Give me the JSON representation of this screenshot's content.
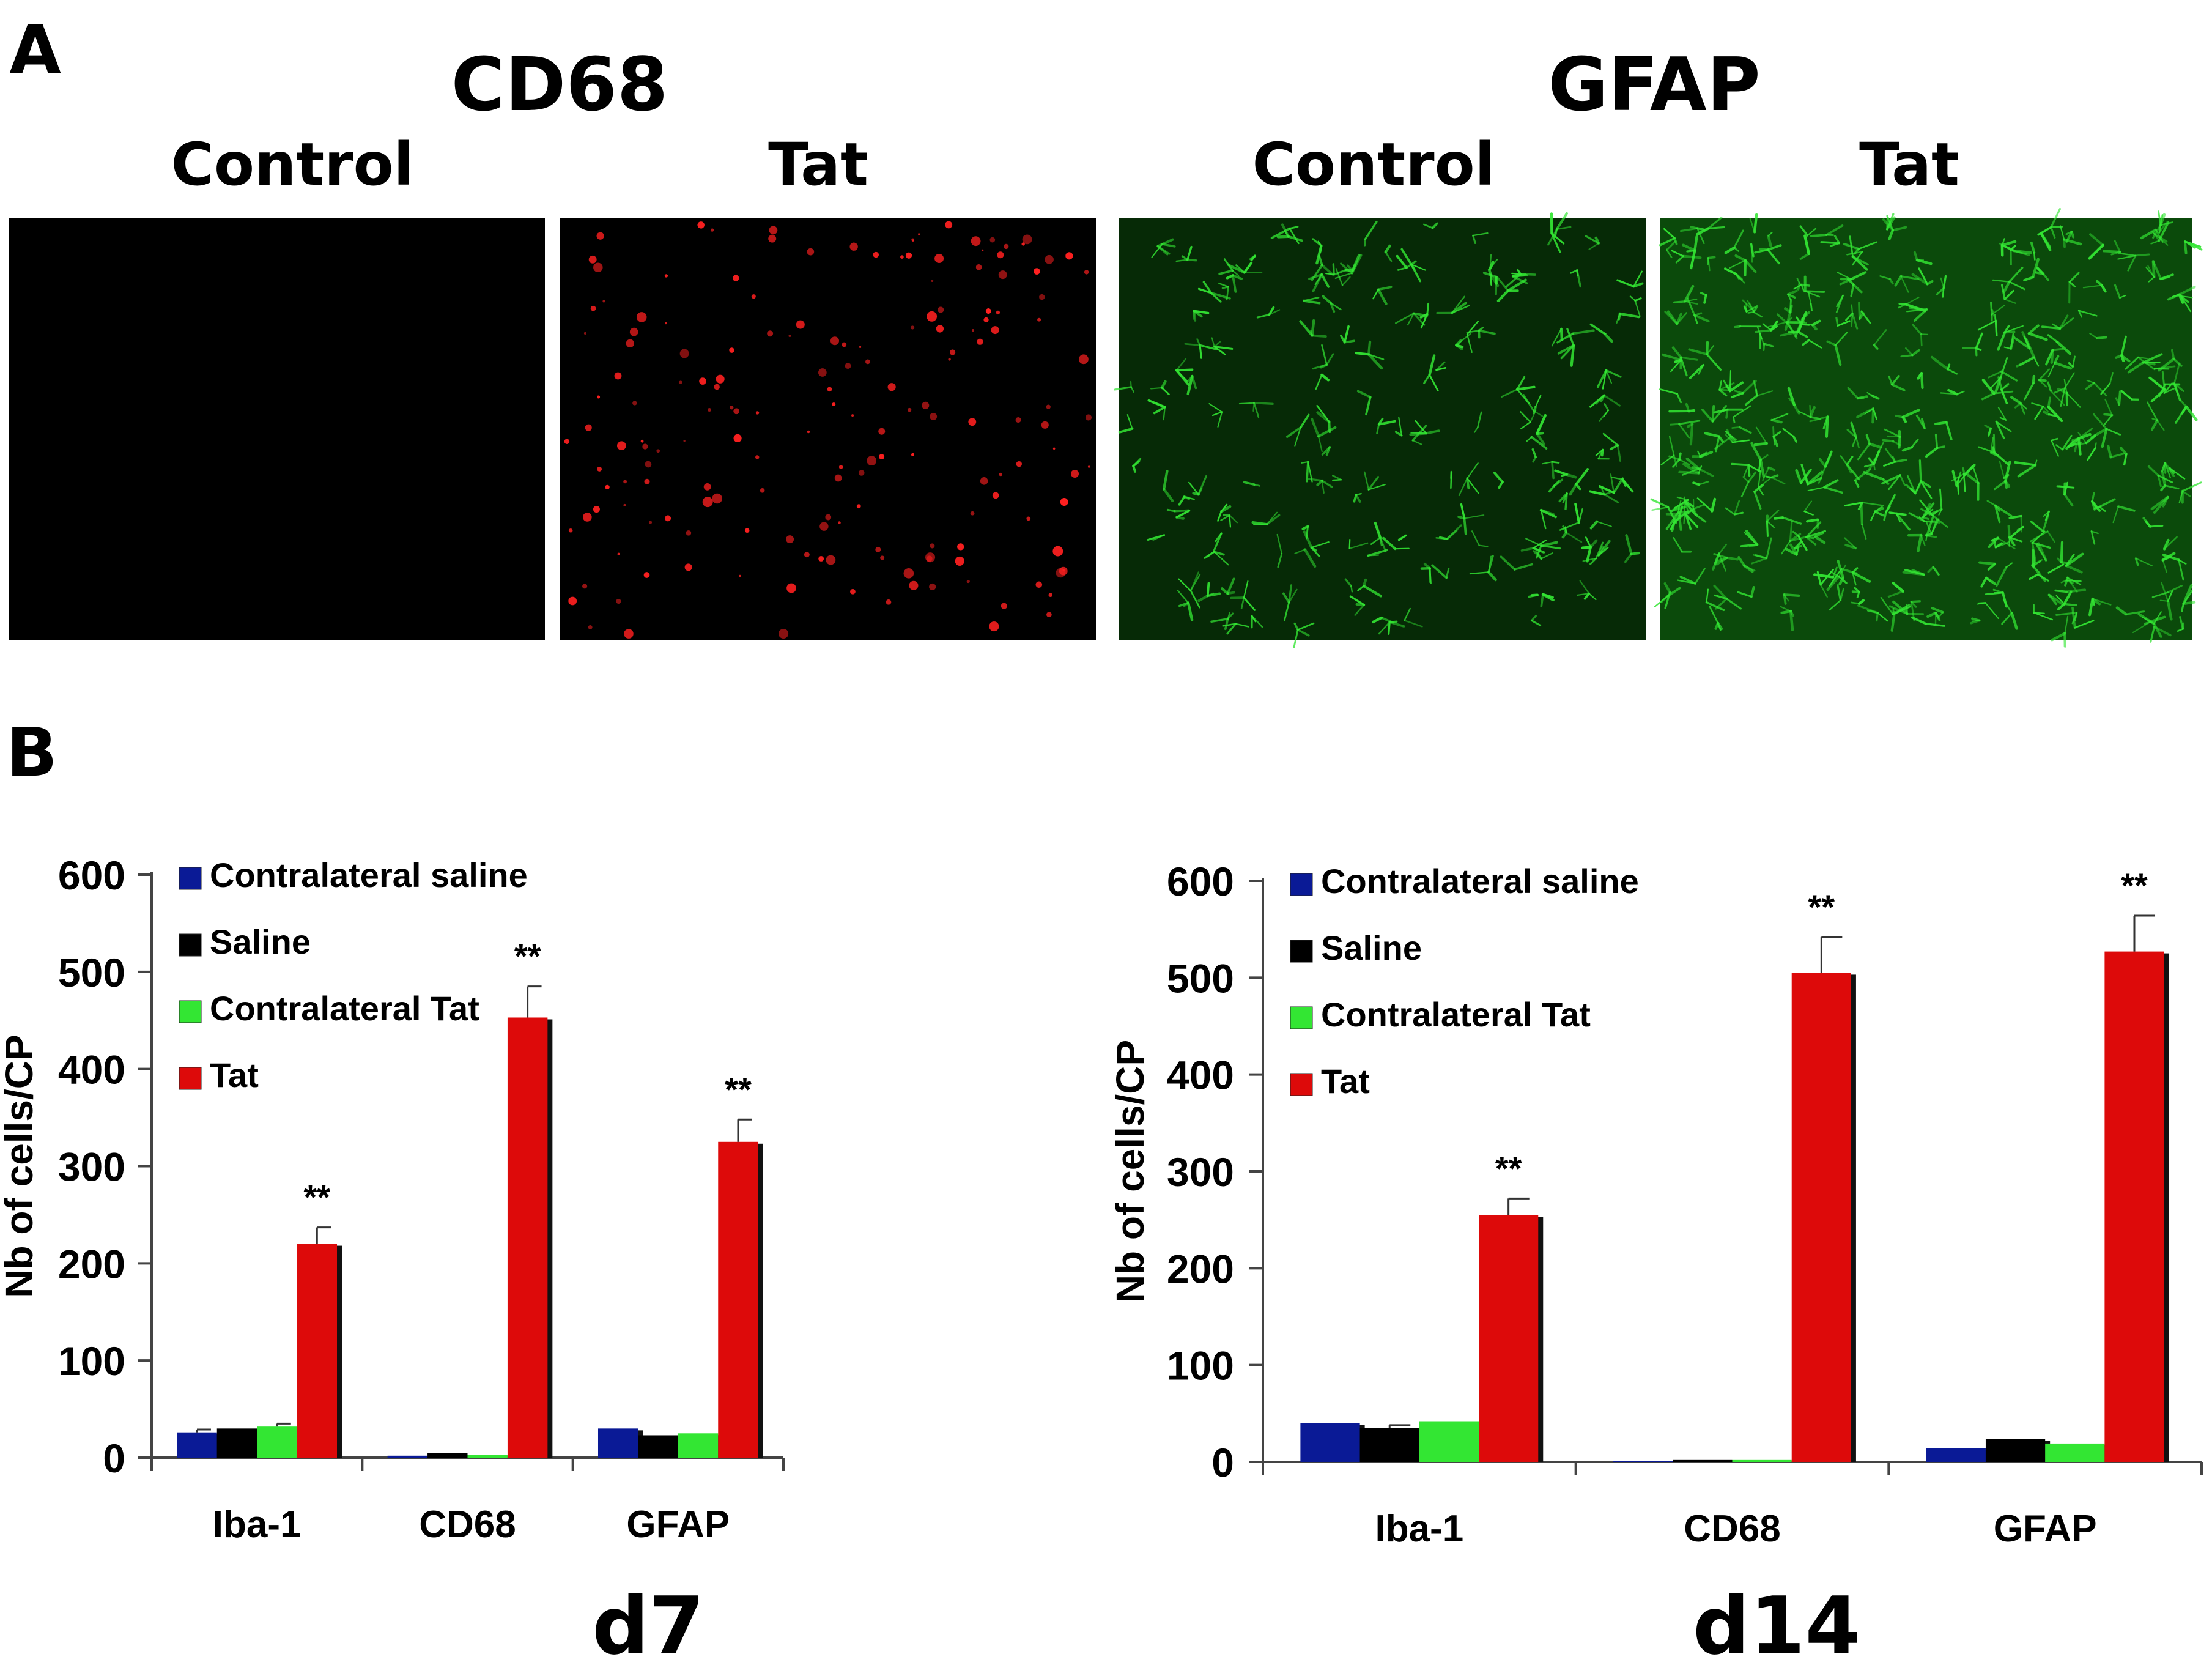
{
  "panel_a": {
    "letter": "A",
    "groups": [
      {
        "title": "CD68",
        "images": [
          {
            "label": "Control",
            "stain_color": "#ff2020",
            "signal_density": 0.0
          },
          {
            "label": "Tat",
            "stain_color": "#ff2020",
            "signal_density": 0.35
          }
        ]
      },
      {
        "title": "GFAP",
        "images": [
          {
            "label": "Control",
            "stain_color": "#33e633",
            "signal_density": 0.4
          },
          {
            "label": "Tat",
            "stain_color": "#33e633",
            "signal_density": 0.85
          }
        ]
      }
    ]
  },
  "panel_b": {
    "letter": "B"
  },
  "chart_data": [
    {
      "type": "bar",
      "title": "d7",
      "ylabel": "Nb of cells/CP",
      "xlabel": "",
      "ylim": [
        0,
        600
      ],
      "yticks": [
        0,
        100,
        200,
        300,
        400,
        500,
        600
      ],
      "categories": [
        "Iba-1",
        "CD68",
        "GFAP"
      ],
      "grid": false,
      "legend_position": "top-left",
      "series": [
        {
          "name": "Contralateral saline",
          "color": "#0a1a96",
          "values": [
            26,
            2,
            30
          ],
          "errors": [
            3,
            0,
            0
          ]
        },
        {
          "name": "Saline",
          "color": "#000000",
          "values": [
            30,
            5,
            23
          ],
          "errors": [
            0,
            0,
            0
          ]
        },
        {
          "name": "Contralateral Tat",
          "color": "#33e633",
          "values": [
            32,
            3,
            25
          ],
          "errors": [
            3,
            0,
            0
          ]
        },
        {
          "name": "Tat",
          "color": "#dd0a0a",
          "values": [
            220,
            453,
            325
          ],
          "errors": [
            17,
            32,
            23
          ]
        }
      ],
      "annotations": [
        {
          "category": "Iba-1",
          "series": "Tat",
          "text": "**"
        },
        {
          "category": "CD68",
          "series": "Tat",
          "text": "**"
        },
        {
          "category": "GFAP",
          "series": "Tat",
          "text": "**"
        }
      ]
    },
    {
      "type": "bar",
      "title": "d14",
      "ylabel": "Nb of cells/CP",
      "xlabel": "",
      "ylim": [
        0,
        600
      ],
      "yticks": [
        0,
        100,
        200,
        300,
        400,
        500,
        600
      ],
      "categories": [
        "Iba-1",
        "CD68",
        "GFAP"
      ],
      "grid": false,
      "legend_position": "top-left",
      "series": [
        {
          "name": "Contralateral saline",
          "color": "#0a1a96",
          "values": [
            40,
            1,
            14
          ],
          "errors": [
            0,
            0,
            0
          ]
        },
        {
          "name": "Saline",
          "color": "#000000",
          "values": [
            35,
            2,
            24
          ],
          "errors": [
            3,
            0,
            0
          ]
        },
        {
          "name": "Contralateral Tat",
          "color": "#33e633",
          "values": [
            42,
            2,
            19
          ],
          "errors": [
            0,
            0,
            0
          ]
        },
        {
          "name": "Tat",
          "color": "#dd0a0a",
          "values": [
            255,
            505,
            527
          ],
          "errors": [
            17,
            37,
            37
          ]
        }
      ],
      "annotations": [
        {
          "category": "Iba-1",
          "series": "Tat",
          "text": "**"
        },
        {
          "category": "CD68",
          "series": "Tat",
          "text": "**"
        },
        {
          "category": "GFAP",
          "series": "Tat",
          "text": "**"
        }
      ]
    }
  ]
}
